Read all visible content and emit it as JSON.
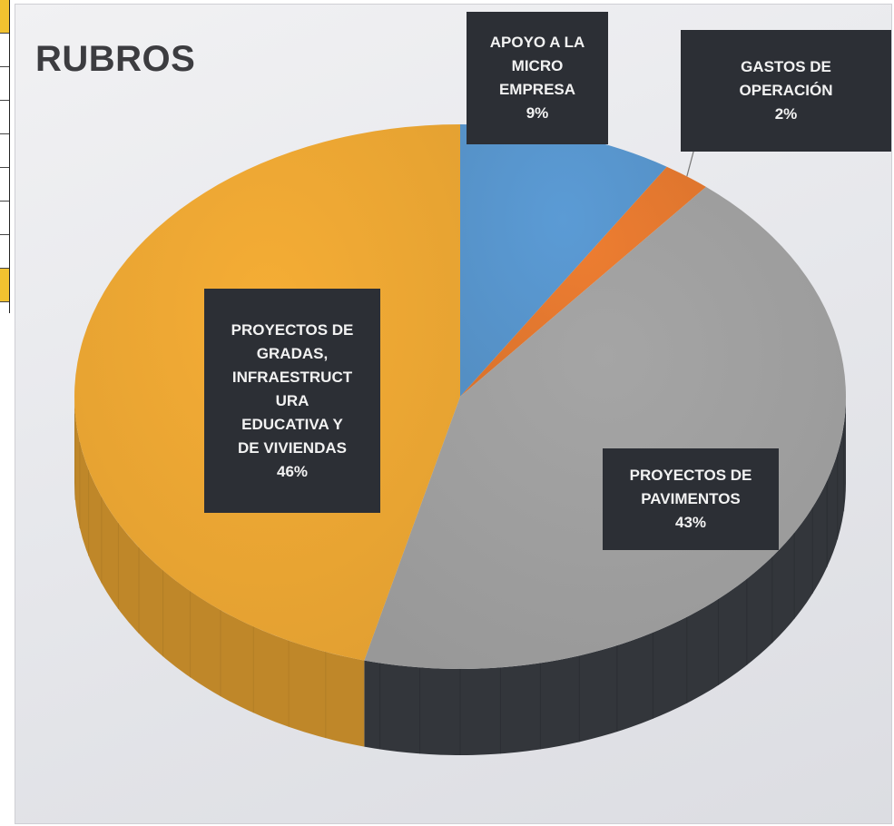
{
  "colors": {
    "apoyo": "#5b9bd5",
    "gastos": "#ed7d31",
    "pavimentos": "#a5a5a5",
    "gradas": "#f5ad35",
    "label_bg": "#2c2f35",
    "label_text": "#f2f2f2"
  },
  "chart_data": {
    "type": "pie",
    "title": "RUBROS",
    "style": "3d",
    "slices": [
      {
        "key": "apoyo",
        "name": "APOYO A LA MICRO EMPRESA",
        "name_lines": [
          "APOYO A LA",
          "MICRO",
          "EMPRESA"
        ],
        "value": 9,
        "percent_label": "9%",
        "color": "#5b9bd5"
      },
      {
        "key": "gastos",
        "name": "GASTOS DE OPERACIÓN",
        "name_lines": [
          "GASTOS DE",
          "OPERACIÓN"
        ],
        "value": 2,
        "percent_label": "2%",
        "color": "#ed7d31"
      },
      {
        "key": "pavimentos",
        "name": "PROYECTOS DE PAVIMENTOS",
        "name_lines": [
          "PROYECTOS DE",
          "PAVIMENTOS"
        ],
        "value": 43,
        "percent_label": "43%",
        "color": "#a5a5a5"
      },
      {
        "key": "gradas",
        "name": "PROYECTOS DE GRADAS, INFRAESTRUCTURA EDUCATIVA Y DE VIVIENDAS",
        "name_lines": [
          "PROYECTOS DE",
          "GRADAS,",
          "INFRAESTRUCT",
          "URA",
          "EDUCATIVA Y",
          "DE VIVIENDAS"
        ],
        "value": 46,
        "percent_label": "46%",
        "color": "#f5ad35"
      }
    ]
  }
}
